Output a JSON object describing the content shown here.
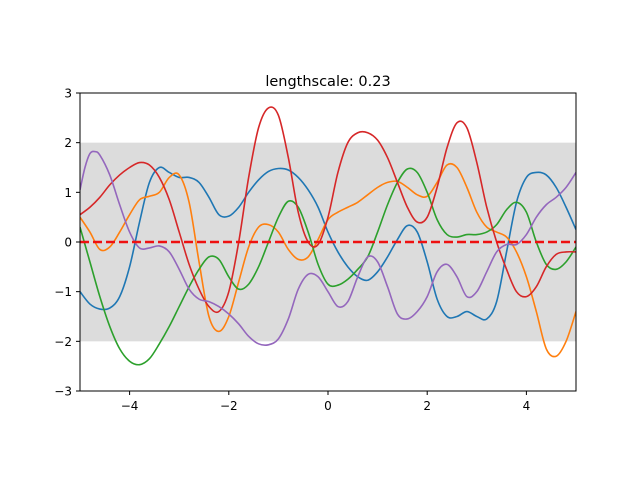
{
  "chart_data": {
    "type": "line",
    "title": "lengthscale: 0.23",
    "xlabel": "",
    "ylabel": "",
    "xlim": [
      -5,
      5
    ],
    "ylim": [
      -3,
      3
    ],
    "grid": false,
    "x_ticks": [
      -4,
      -2,
      0,
      2,
      4
    ],
    "x_tick_labels": [
      "−4",
      "−2",
      "0",
      "2",
      "4"
    ],
    "y_ticks": [
      -3,
      -2,
      -1,
      0,
      1,
      2,
      3
    ],
    "y_tick_labels": [
      "−3",
      "−2",
      "−1",
      "0",
      "1",
      "2",
      "3"
    ],
    "band": {
      "lower": -2,
      "upper": 2,
      "color": "#dcdcdc"
    },
    "mean_line": {
      "y": 0,
      "color": "#ee1111",
      "style": "dashed"
    },
    "series": [
      {
        "color": "#1f77b4",
        "points": [
          [
            -5,
            -1.0
          ],
          [
            -4.8,
            -1.25
          ],
          [
            -4.6,
            -1.35
          ],
          [
            -4.4,
            -1.33
          ],
          [
            -4.2,
            -1.1
          ],
          [
            -4.0,
            -0.5
          ],
          [
            -3.8,
            0.4
          ],
          [
            -3.6,
            1.2
          ],
          [
            -3.4,
            1.5
          ],
          [
            -3.2,
            1.4
          ],
          [
            -3.0,
            1.3
          ],
          [
            -2.8,
            1.3
          ],
          [
            -2.6,
            1.2
          ],
          [
            -2.4,
            0.9
          ],
          [
            -2.2,
            0.55
          ],
          [
            -2.0,
            0.52
          ],
          [
            -1.8,
            0.7
          ],
          [
            -1.6,
            1.0
          ],
          [
            -1.4,
            1.25
          ],
          [
            -1.2,
            1.42
          ],
          [
            -1.0,
            1.48
          ],
          [
            -0.8,
            1.45
          ],
          [
            -0.6,
            1.3
          ],
          [
            -0.4,
            1.05
          ],
          [
            -0.2,
            0.7
          ],
          [
            0.0,
            0.2
          ],
          [
            0.2,
            -0.2
          ],
          [
            0.4,
            -0.5
          ],
          [
            0.6,
            -0.7
          ],
          [
            0.8,
            -0.77
          ],
          [
            1.0,
            -0.6
          ],
          [
            1.2,
            -0.3
          ],
          [
            1.4,
            0.05
          ],
          [
            1.6,
            0.33
          ],
          [
            1.8,
            0.2
          ],
          [
            2.0,
            -0.4
          ],
          [
            2.2,
            -1.15
          ],
          [
            2.4,
            -1.5
          ],
          [
            2.6,
            -1.5
          ],
          [
            2.8,
            -1.4
          ],
          [
            3.0,
            -1.5
          ],
          [
            3.2,
            -1.55
          ],
          [
            3.4,
            -1.2
          ],
          [
            3.6,
            -0.2
          ],
          [
            3.8,
            0.8
          ],
          [
            4.0,
            1.3
          ],
          [
            4.2,
            1.4
          ],
          [
            4.4,
            1.35
          ],
          [
            4.6,
            1.1
          ],
          [
            4.8,
            0.7
          ],
          [
            5.0,
            0.25
          ]
        ]
      },
      {
        "color": "#ff7f0e",
        "points": [
          [
            -5,
            0.5
          ],
          [
            -4.8,
            0.2
          ],
          [
            -4.6,
            -0.15
          ],
          [
            -4.4,
            -0.1
          ],
          [
            -4.2,
            0.2
          ],
          [
            -4.0,
            0.55
          ],
          [
            -3.8,
            0.85
          ],
          [
            -3.6,
            0.92
          ],
          [
            -3.4,
            1.0
          ],
          [
            -3.2,
            1.3
          ],
          [
            -3.0,
            1.35
          ],
          [
            -2.8,
            0.8
          ],
          [
            -2.6,
            -0.4
          ],
          [
            -2.4,
            -1.5
          ],
          [
            -2.2,
            -1.8
          ],
          [
            -2.0,
            -1.5
          ],
          [
            -1.8,
            -0.8
          ],
          [
            -1.6,
            -0.1
          ],
          [
            -1.4,
            0.3
          ],
          [
            -1.2,
            0.35
          ],
          [
            -1.0,
            0.2
          ],
          [
            -0.8,
            -0.15
          ],
          [
            -0.6,
            -0.35
          ],
          [
            -0.4,
            -0.3
          ],
          [
            -0.2,
            0.05
          ],
          [
            0.0,
            0.45
          ],
          [
            0.2,
            0.6
          ],
          [
            0.4,
            0.7
          ],
          [
            0.6,
            0.8
          ],
          [
            0.8,
            0.95
          ],
          [
            1.0,
            1.1
          ],
          [
            1.2,
            1.2
          ],
          [
            1.4,
            1.22
          ],
          [
            1.6,
            1.1
          ],
          [
            1.8,
            0.95
          ],
          [
            2.0,
            0.92
          ],
          [
            2.2,
            1.2
          ],
          [
            2.4,
            1.55
          ],
          [
            2.6,
            1.5
          ],
          [
            2.8,
            1.1
          ],
          [
            3.0,
            0.6
          ],
          [
            3.2,
            0.3
          ],
          [
            3.4,
            0.2
          ],
          [
            3.6,
            0.1
          ],
          [
            3.8,
            -0.2
          ],
          [
            4.0,
            -0.7
          ],
          [
            4.2,
            -1.4
          ],
          [
            4.4,
            -2.15
          ],
          [
            4.6,
            -2.3
          ],
          [
            4.8,
            -2.0
          ],
          [
            5.0,
            -1.4
          ]
        ]
      },
      {
        "color": "#2ca02c",
        "points": [
          [
            -5,
            0.3
          ],
          [
            -4.8,
            -0.4
          ],
          [
            -4.6,
            -1.1
          ],
          [
            -4.4,
            -1.7
          ],
          [
            -4.2,
            -2.15
          ],
          [
            -4.0,
            -2.4
          ],
          [
            -3.8,
            -2.47
          ],
          [
            -3.6,
            -2.35
          ],
          [
            -3.4,
            -2.05
          ],
          [
            -3.2,
            -1.7
          ],
          [
            -3.0,
            -1.3
          ],
          [
            -2.8,
            -0.9
          ],
          [
            -2.6,
            -0.55
          ],
          [
            -2.4,
            -0.3
          ],
          [
            -2.2,
            -0.35
          ],
          [
            -2.0,
            -0.7
          ],
          [
            -1.8,
            -0.95
          ],
          [
            -1.6,
            -0.85
          ],
          [
            -1.4,
            -0.5
          ],
          [
            -1.2,
            0.0
          ],
          [
            -1.0,
            0.5
          ],
          [
            -0.8,
            0.82
          ],
          [
            -0.6,
            0.7
          ],
          [
            -0.4,
            0.2
          ],
          [
            -0.2,
            -0.45
          ],
          [
            0.0,
            -0.85
          ],
          [
            0.2,
            -0.87
          ],
          [
            0.4,
            -0.75
          ],
          [
            0.6,
            -0.55
          ],
          [
            0.8,
            -0.3
          ],
          [
            1.0,
            0.2
          ],
          [
            1.2,
            0.75
          ],
          [
            1.4,
            1.2
          ],
          [
            1.6,
            1.47
          ],
          [
            1.8,
            1.4
          ],
          [
            2.0,
            1.0
          ],
          [
            2.2,
            0.45
          ],
          [
            2.4,
            0.15
          ],
          [
            2.6,
            0.1
          ],
          [
            2.8,
            0.15
          ],
          [
            3.0,
            0.15
          ],
          [
            3.2,
            0.2
          ],
          [
            3.4,
            0.35
          ],
          [
            3.6,
            0.65
          ],
          [
            3.8,
            0.8
          ],
          [
            4.0,
            0.6
          ],
          [
            4.2,
            0.0
          ],
          [
            4.4,
            -0.45
          ],
          [
            4.6,
            -0.55
          ],
          [
            4.8,
            -0.4
          ],
          [
            5.0,
            -0.1
          ]
        ]
      },
      {
        "color": "#d62728",
        "points": [
          [
            -5,
            0.55
          ],
          [
            -4.8,
            0.7
          ],
          [
            -4.6,
            0.9
          ],
          [
            -4.4,
            1.15
          ],
          [
            -4.2,
            1.35
          ],
          [
            -4.0,
            1.5
          ],
          [
            -3.8,
            1.6
          ],
          [
            -3.6,
            1.55
          ],
          [
            -3.4,
            1.3
          ],
          [
            -3.2,
            0.85
          ],
          [
            -3.0,
            0.2
          ],
          [
            -2.8,
            -0.45
          ],
          [
            -2.6,
            -0.95
          ],
          [
            -2.4,
            -1.3
          ],
          [
            -2.2,
            -1.4
          ],
          [
            -2.0,
            -1.0
          ],
          [
            -1.8,
            0.0
          ],
          [
            -1.6,
            1.3
          ],
          [
            -1.4,
            2.3
          ],
          [
            -1.2,
            2.7
          ],
          [
            -1.0,
            2.55
          ],
          [
            -0.8,
            1.7
          ],
          [
            -0.6,
            0.6
          ],
          [
            -0.4,
            0.0
          ],
          [
            -0.2,
            -0.05
          ],
          [
            0.0,
            0.5
          ],
          [
            0.2,
            1.4
          ],
          [
            0.4,
            2.0
          ],
          [
            0.6,
            2.2
          ],
          [
            0.8,
            2.2
          ],
          [
            1.0,
            2.05
          ],
          [
            1.2,
            1.7
          ],
          [
            1.4,
            1.2
          ],
          [
            1.6,
            0.7
          ],
          [
            1.8,
            0.4
          ],
          [
            2.0,
            0.5
          ],
          [
            2.2,
            1.1
          ],
          [
            2.4,
            1.9
          ],
          [
            2.6,
            2.4
          ],
          [
            2.8,
            2.3
          ],
          [
            3.0,
            1.6
          ],
          [
            3.2,
            0.7
          ],
          [
            3.4,
            0.0
          ],
          [
            3.6,
            -0.55
          ],
          [
            3.8,
            -1.0
          ],
          [
            4.0,
            -1.1
          ],
          [
            4.2,
            -0.9
          ],
          [
            4.4,
            -0.5
          ],
          [
            4.6,
            -0.25
          ],
          [
            4.8,
            -0.2
          ],
          [
            5.0,
            -0.2
          ]
        ]
      },
      {
        "color": "#9467bd",
        "points": [
          [
            -5,
            1.05
          ],
          [
            -4.9,
            1.5
          ],
          [
            -4.8,
            1.78
          ],
          [
            -4.7,
            1.82
          ],
          [
            -4.6,
            1.75
          ],
          [
            -4.4,
            1.35
          ],
          [
            -4.2,
            0.75
          ],
          [
            -4.0,
            0.2
          ],
          [
            -3.8,
            -0.12
          ],
          [
            -3.6,
            -0.12
          ],
          [
            -3.4,
            -0.08
          ],
          [
            -3.2,
            -0.2
          ],
          [
            -3.0,
            -0.55
          ],
          [
            -2.8,
            -0.95
          ],
          [
            -2.6,
            -1.15
          ],
          [
            -2.4,
            -1.2
          ],
          [
            -2.2,
            -1.3
          ],
          [
            -2.0,
            -1.45
          ],
          [
            -1.8,
            -1.65
          ],
          [
            -1.6,
            -1.9
          ],
          [
            -1.4,
            -2.05
          ],
          [
            -1.2,
            -2.07
          ],
          [
            -1.0,
            -1.95
          ],
          [
            -0.8,
            -1.55
          ],
          [
            -0.6,
            -0.95
          ],
          [
            -0.4,
            -0.65
          ],
          [
            -0.2,
            -0.7
          ],
          [
            0.0,
            -1.0
          ],
          [
            0.2,
            -1.3
          ],
          [
            0.4,
            -1.2
          ],
          [
            0.6,
            -0.7
          ],
          [
            0.8,
            -0.3
          ],
          [
            1.0,
            -0.4
          ],
          [
            1.2,
            -0.9
          ],
          [
            1.4,
            -1.45
          ],
          [
            1.6,
            -1.55
          ],
          [
            1.8,
            -1.4
          ],
          [
            2.0,
            -1.1
          ],
          [
            2.2,
            -0.6
          ],
          [
            2.4,
            -0.45
          ],
          [
            2.6,
            -0.7
          ],
          [
            2.8,
            -1.1
          ],
          [
            3.0,
            -1.0
          ],
          [
            3.2,
            -0.6
          ],
          [
            3.4,
            -0.2
          ],
          [
            3.6,
            -0.05
          ],
          [
            3.8,
            -0.05
          ],
          [
            4.0,
            0.15
          ],
          [
            4.2,
            0.5
          ],
          [
            4.4,
            0.75
          ],
          [
            4.6,
            0.9
          ],
          [
            4.8,
            1.1
          ],
          [
            5.0,
            1.4
          ]
        ]
      }
    ]
  }
}
